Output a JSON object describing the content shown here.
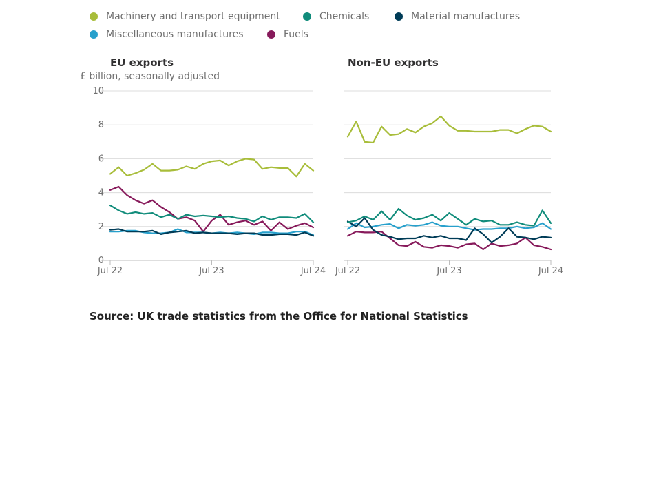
{
  "legend": [
    {
      "label": "Machinery and transport equipment",
      "color": "#a8bd3a"
    },
    {
      "label": "Chemicals",
      "color": "#118c7b"
    },
    {
      "label": "Material manufactures",
      "color": "#003c57"
    },
    {
      "label": "Miscellaneous manufactures",
      "color": "#27a0cc"
    },
    {
      "label": "Fuels",
      "color": "#871a5b"
    }
  ],
  "units_label": "£ billion, seasonally adjusted",
  "source": "Source: UK trade statistics from the Office for National Statistics",
  "chart_data": [
    {
      "type": "line",
      "title": "EU exports",
      "ylabel": "£ billion, seasonally adjusted",
      "ylim": [
        0,
        10
      ],
      "yticks": [
        "0",
        "2",
        "4",
        "6",
        "8",
        "10"
      ],
      "xticks": [
        "Jul 22",
        "Jul 23",
        "Jul 24"
      ],
      "x": [
        "Jul 22",
        "Aug 22",
        "Sep 22",
        "Oct 22",
        "Nov 22",
        "Dec 22",
        "Jan 23",
        "Feb 23",
        "Mar 23",
        "Apr 23",
        "May 23",
        "Jun 23",
        "Jul 23",
        "Aug 23",
        "Sep 23",
        "Oct 23",
        "Nov 23",
        "Dec 23",
        "Jan 24",
        "Feb 24",
        "Mar 24",
        "Apr 24",
        "May 24",
        "Jun 24",
        "Jul 24"
      ],
      "series": [
        {
          "name": "Machinery and transport equipment",
          "color": "#a8bd3a",
          "values": [
            5.1,
            5.5,
            5.0,
            5.15,
            5.35,
            5.7,
            5.3,
            5.3,
            5.35,
            5.55,
            5.4,
            5.7,
            5.85,
            5.9,
            5.6,
            5.85,
            6.0,
            5.95,
            5.4,
            5.5,
            5.45,
            5.45,
            4.95,
            5.7,
            5.3
          ]
        },
        {
          "name": "Chemicals",
          "color": "#118c7b",
          "values": [
            3.25,
            2.95,
            2.75,
            2.85,
            2.75,
            2.8,
            2.55,
            2.7,
            2.45,
            2.7,
            2.6,
            2.65,
            2.6,
            2.55,
            2.6,
            2.5,
            2.45,
            2.3,
            2.6,
            2.4,
            2.55,
            2.55,
            2.5,
            2.75,
            2.25
          ]
        },
        {
          "name": "Material manufactures",
          "color": "#003c57",
          "values": [
            1.8,
            1.85,
            1.7,
            1.7,
            1.7,
            1.75,
            1.55,
            1.65,
            1.7,
            1.75,
            1.6,
            1.65,
            1.6,
            1.6,
            1.6,
            1.55,
            1.6,
            1.6,
            1.5,
            1.5,
            1.55,
            1.55,
            1.5,
            1.65,
            1.45
          ]
        },
        {
          "name": "Miscellaneous manufactures",
          "color": "#27a0cc",
          "values": [
            1.7,
            1.7,
            1.75,
            1.75,
            1.65,
            1.6,
            1.6,
            1.65,
            1.85,
            1.65,
            1.65,
            1.65,
            1.6,
            1.65,
            1.6,
            1.65,
            1.6,
            1.55,
            1.65,
            1.65,
            1.6,
            1.6,
            1.7,
            1.7,
            1.5
          ]
        },
        {
          "name": "Fuels",
          "color": "#871a5b",
          "values": [
            4.15,
            4.35,
            3.85,
            3.55,
            3.35,
            3.55,
            3.15,
            2.85,
            2.45,
            2.55,
            2.35,
            1.7,
            2.35,
            2.7,
            2.1,
            2.25,
            2.35,
            2.1,
            2.3,
            1.75,
            2.25,
            1.85,
            2.05,
            2.2,
            1.95
          ]
        }
      ]
    },
    {
      "type": "line",
      "title": "Non-EU exports",
      "ylim": [
        0,
        10
      ],
      "xticks": [
        "Jul 22",
        "Jul 23",
        "Jul 24"
      ],
      "x": [
        "Jul 22",
        "Aug 22",
        "Sep 22",
        "Oct 22",
        "Nov 22",
        "Dec 22",
        "Jan 23",
        "Feb 23",
        "Mar 23",
        "Apr 23",
        "May 23",
        "Jun 23",
        "Jul 23",
        "Aug 23",
        "Sep 23",
        "Oct 23",
        "Nov 23",
        "Dec 23",
        "Jan 24",
        "Feb 24",
        "Mar 24",
        "Apr 24",
        "May 24",
        "Jun 24",
        "Jul 24"
      ],
      "series": [
        {
          "name": "Machinery and transport equipment",
          "color": "#a8bd3a",
          "values": [
            7.3,
            8.2,
            7.0,
            6.95,
            7.9,
            7.4,
            7.45,
            7.75,
            7.55,
            7.9,
            8.1,
            8.5,
            7.95,
            7.65,
            7.65,
            7.6,
            7.6,
            7.6,
            7.7,
            7.7,
            7.5,
            7.75,
            7.95,
            7.9,
            7.6
          ]
        },
        {
          "name": "Chemicals",
          "color": "#118c7b",
          "values": [
            2.25,
            2.35,
            2.6,
            2.4,
            2.9,
            2.4,
            3.05,
            2.65,
            2.4,
            2.5,
            2.7,
            2.35,
            2.8,
            2.45,
            2.1,
            2.45,
            2.3,
            2.35,
            2.1,
            2.1,
            2.25,
            2.1,
            2.05,
            2.95,
            2.2
          ]
        },
        {
          "name": "Material manufactures",
          "color": "#003c57",
          "values": [
            2.3,
            2.0,
            2.5,
            1.8,
            1.5,
            1.4,
            1.25,
            1.3,
            1.3,
            1.45,
            1.35,
            1.45,
            1.3,
            1.3,
            1.2,
            1.9,
            1.55,
            1.05,
            1.4,
            1.9,
            1.4,
            1.35,
            1.25,
            1.4,
            1.35
          ]
        },
        {
          "name": "Miscellaneous manufactures",
          "color": "#27a0cc",
          "values": [
            1.85,
            2.2,
            1.95,
            2.0,
            2.1,
            2.15,
            1.9,
            2.1,
            2.05,
            2.1,
            2.25,
            2.05,
            2.0,
            2.0,
            1.9,
            1.8,
            1.85,
            1.85,
            1.9,
            1.9,
            2.0,
            1.9,
            1.95,
            2.2,
            1.85
          ]
        },
        {
          "name": "Fuels",
          "color": "#871a5b",
          "values": [
            1.45,
            1.7,
            1.65,
            1.65,
            1.7,
            1.3,
            0.9,
            0.85,
            1.1,
            0.8,
            0.75,
            0.9,
            0.85,
            0.75,
            0.95,
            1.0,
            0.65,
            1.0,
            0.85,
            0.9,
            1.0,
            1.35,
            0.9,
            0.8,
            0.65
          ]
        }
      ]
    }
  ]
}
